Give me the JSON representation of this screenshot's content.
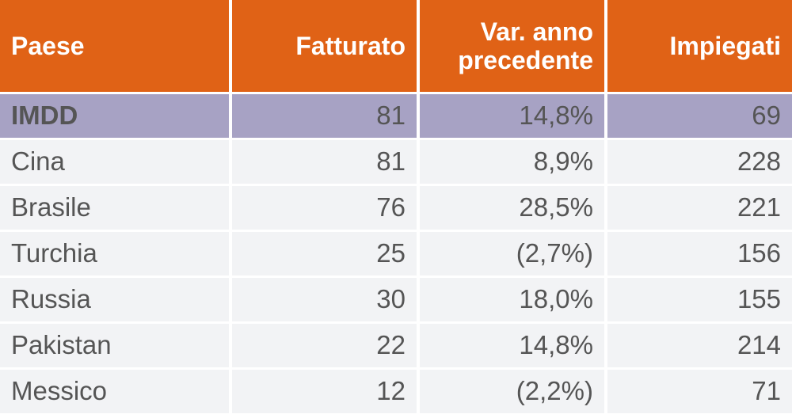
{
  "chart_data": {
    "type": "table",
    "columns": [
      "Paese",
      "Fatturato",
      "Var. anno precedente",
      "Impiegati"
    ],
    "rows": [
      {
        "country": "IMDD",
        "revenue": "81",
        "change": "14,8%",
        "employees": "69",
        "highlight": true
      },
      {
        "country": "Cina",
        "revenue": "81",
        "change": "8,9%",
        "employees": "228",
        "highlight": false
      },
      {
        "country": "Brasile",
        "revenue": "76",
        "change": "28,5%",
        "employees": "221",
        "highlight": false
      },
      {
        "country": "Turchia",
        "revenue": "25",
        "change": "(2,7%)",
        "employees": "156",
        "highlight": false
      },
      {
        "country": "Russia",
        "revenue": "30",
        "change": "18,0%",
        "employees": "155",
        "highlight": false
      },
      {
        "country": "Pakistan",
        "revenue": "22",
        "change": "14,8%",
        "employees": "214",
        "highlight": false
      },
      {
        "country": "Messico",
        "revenue": "12",
        "change": "(2,2%)",
        "employees": "71",
        "highlight": false
      }
    ]
  },
  "colors": {
    "header_bg": "#e06216",
    "header_text": "#ffffff",
    "highlight_row_bg": "#a7a2c4",
    "row_bg": "#f2f3f5",
    "body_text": "#555555"
  }
}
